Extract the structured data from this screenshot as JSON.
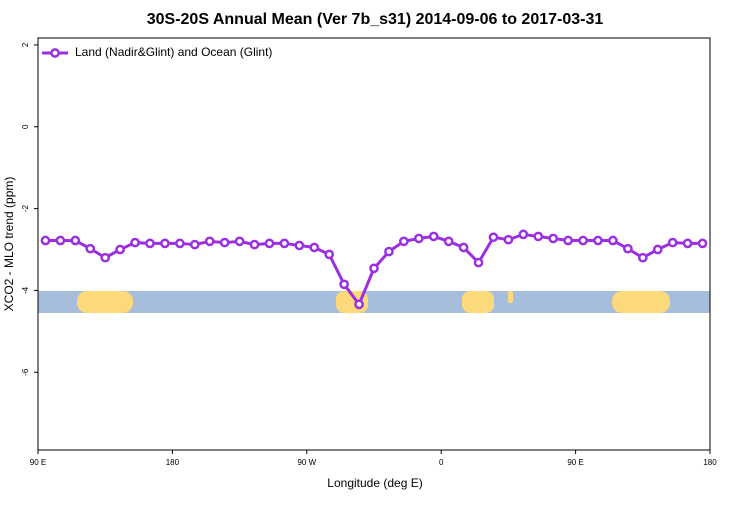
{
  "chart_data": {
    "type": "line",
    "title": "30S-20S Annual Mean (Ver 7b_s31)   2014-09-06 to 2017-03-31",
    "x_label": "Longitude (deg E)",
    "y_label": "XCO2 - MLO trend (ppm)",
    "x": [
      95,
      105,
      115,
      125,
      135,
      145,
      155,
      165,
      175,
      185,
      195,
      205,
      215,
      225,
      235,
      245,
      255,
      265,
      275,
      285,
      295,
      305,
      315,
      325,
      335,
      345,
      355,
      365,
      375,
      385,
      395,
      405,
      415,
      425,
      435,
      445,
      455,
      465,
      475,
      485,
      495,
      505,
      515,
      525,
      535
    ],
    "series": [
      {
        "name": "Land (Nadir&Glint) and Ocean (Glint)",
        "color": "#9b30e0",
        "values": [
          -2.78,
          -2.78,
          -2.78,
          -2.98,
          -3.2,
          -3.0,
          -2.83,
          -2.85,
          -2.85,
          -2.85,
          -2.88,
          -2.8,
          -2.83,
          -2.8,
          -2.88,
          -2.85,
          -2.85,
          -2.9,
          -2.95,
          -3.12,
          -3.85,
          -4.34,
          -3.46,
          -3.05,
          -2.8,
          -2.73,
          -2.68,
          -2.8,
          -2.95,
          -3.32,
          -2.7,
          -2.76,
          -2.63,
          -2.68,
          -2.73,
          -2.78,
          -2.78,
          -2.78,
          -2.78,
          -2.98,
          -3.2,
          -3.0,
          -2.83,
          -2.85,
          -2.85
        ]
      }
    ],
    "xlim": [
      90,
      540
    ],
    "xticks": [
      {
        "value": 90,
        "label": "90 E"
      },
      {
        "value": 180,
        "label": "180"
      },
      {
        "value": 270,
        "label": "90 W"
      },
      {
        "value": 360,
        "label": "0"
      },
      {
        "value": 450,
        "label": "90 E"
      },
      {
        "value": 540,
        "label": "180"
      }
    ],
    "ylim": [
      -7.9,
      2.17
    ],
    "yticks": [
      2,
      0,
      -2,
      -4,
      -6
    ],
    "legend": "top-left"
  }
}
